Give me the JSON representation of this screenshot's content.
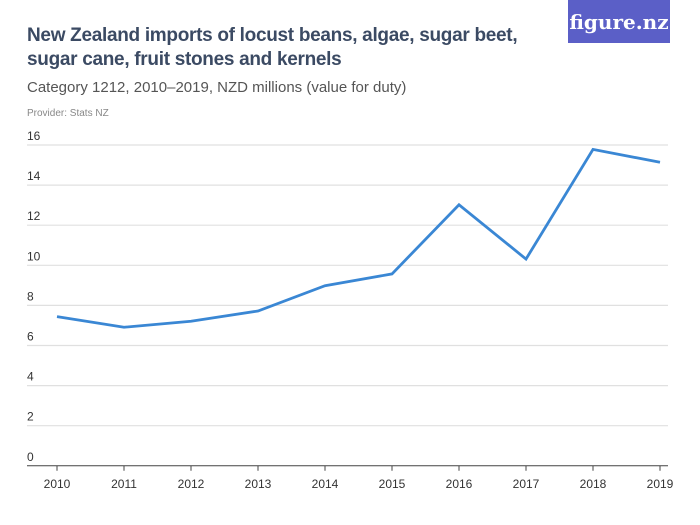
{
  "logo": "figure.nz",
  "header": {
    "title": "New Zealand imports of locust beans, algae, sugar beet, sugar cane, fruit stones and kernels",
    "subtitle": "Category 1212, 2010–2019, NZD millions (value for duty)",
    "provider": "Provider: Stats NZ"
  },
  "chart_data": {
    "type": "line",
    "title": "New Zealand imports of locust beans, algae, sugar beet, sugar cane, fruit stones and kernels",
    "subtitle": "Category 1212, 2010–2019, NZD millions (value for duty)",
    "categories": [
      "2010",
      "2011",
      "2012",
      "2013",
      "2014",
      "2015",
      "2016",
      "2017",
      "2018",
      "2019"
    ],
    "values": [
      7.44,
      6.91,
      7.21,
      7.72,
      8.98,
      9.57,
      13.02,
      10.31,
      15.78,
      15.14
    ],
    "yticks": [
      0,
      2,
      4,
      6,
      8,
      10,
      12,
      14,
      16
    ],
    "ylim": [
      0,
      16
    ],
    "grid": true,
    "line_color": "#3a87d4"
  }
}
